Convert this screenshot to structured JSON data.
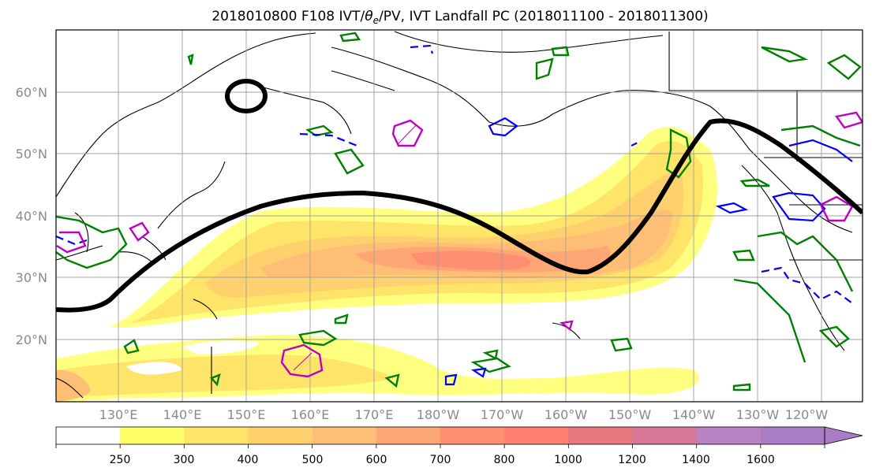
{
  "title": "2018010800 F108 IVT/θe/PV, IVT Landfall PC (2018011100 - 2018011300)",
  "title_parts": {
    "before": "2018010800 F108 IVT/",
    "theta": "θ",
    "sub": "e",
    "after": "/PV, IVT Landfall PC (2018011100 - 2018011300)"
  },
  "lat_labels": [
    "60°N",
    "50°N",
    "40°N",
    "30°N",
    "20°N"
  ],
  "lon_labels": [
    "130°E",
    "140°E",
    "150°E",
    "160°E",
    "170°E",
    "180°W",
    "170°W",
    "160°W",
    "150°W",
    "140°W",
    "130°W",
    "120°W"
  ],
  "colorbar": {
    "ticks": [
      "250",
      "300",
      "400",
      "500",
      "600",
      "700",
      "800",
      "1000",
      "1200",
      "1400",
      "1600"
    ],
    "colors": [
      "#ffffff",
      "#ffff66",
      "#ffe46a",
      "#ffd06e",
      "#ffbe76",
      "#ffa774",
      "#ff8f70",
      "#ff7f73",
      "#e8777f",
      "#d87897",
      "#b883c2",
      "#a87dc5"
    ]
  },
  "colors": {
    "theta_contour": "#008000",
    "pv_contour": "#0000ff",
    "magenta_contour": "#c000c0",
    "landfall_track": "#000000"
  }
}
